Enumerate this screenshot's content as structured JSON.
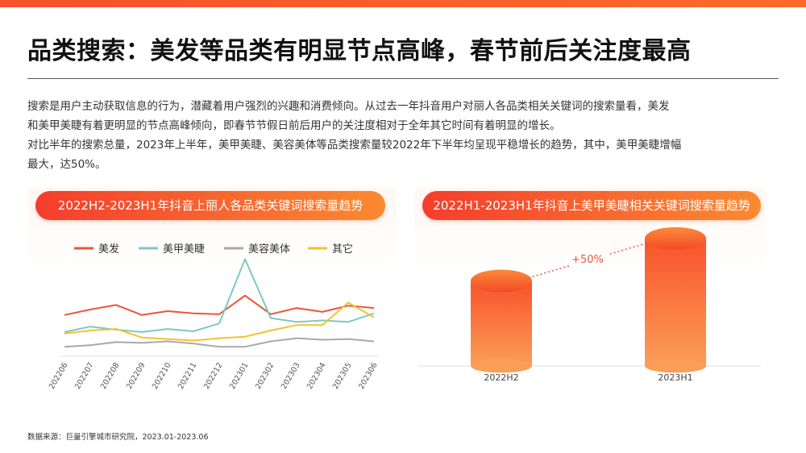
{
  "header": {
    "title": "品类搜索：美发等品类有明显节点高峰，春节前后关注度最高"
  },
  "description": {
    "line1": "搜索是用户主动获取信息的行为，潜藏着用户强烈的兴趣和消费倾向。从过去一年抖音用户对丽人各品类相关关键词的搜索量看，美发",
    "line2": "和美甲美睫有着更明显的节点高峰倾向，即春节节假日前后用户的关注度相对于全年其它时间有着明显的增长。",
    "line3": "对比半年的搜索总量，2023年上半年，美甲美睫、美容美体等品类搜索量较2022年下半年均呈现平稳增长的趋势，其中，美甲美睫增幅",
    "line4": "最大，达50%。"
  },
  "chart_data": [
    {
      "type": "line",
      "title": "2022H2-2023H1年抖音上丽人各品类关键词搜索量趋势",
      "categories": [
        "202206",
        "202207",
        "202208",
        "202209",
        "202210",
        "202211",
        "202212",
        "202301",
        "202302",
        "202303",
        "202304",
        "202305",
        "202306"
      ],
      "series": [
        {
          "name": "美发",
          "color": "#e8563a",
          "values": [
            46,
            53,
            59,
            46,
            51,
            48,
            47,
            71,
            47,
            55,
            50,
            58,
            55
          ]
        },
        {
          "name": "美甲美睫",
          "color": "#7cc9c4",
          "values": [
            24,
            31,
            27,
            24,
            28,
            25,
            35,
            118,
            42,
            37,
            39,
            37,
            48
          ]
        },
        {
          "name": "美容美体",
          "color": "#a9a9a9",
          "values": [
            5,
            7,
            11,
            10,
            12,
            9,
            5,
            5,
            12,
            16,
            14,
            15,
            12
          ]
        },
        {
          "name": "其它",
          "color": "#f2c230",
          "values": [
            22,
            26,
            28,
            17,
            15,
            13,
            16,
            18,
            26,
            33,
            33,
            62,
            43
          ]
        }
      ],
      "ylim": [
        0,
        130
      ],
      "legend": "top",
      "grid": false
    },
    {
      "type": "bar",
      "title": "2022H1-2023H1年抖音上美甲美睫相关关键词搜索量趋势",
      "categories": [
        "2022H2",
        "2023H1"
      ],
      "values": [
        100,
        150
      ],
      "ylim": [
        0,
        165
      ],
      "annotation": "+50%",
      "colors": {
        "top": "#f9522a",
        "bottom": "#fa9e58"
      }
    }
  ],
  "footer": {
    "source": "数据来源：巨量引擎城市研究院，2023.01-2023.06"
  }
}
